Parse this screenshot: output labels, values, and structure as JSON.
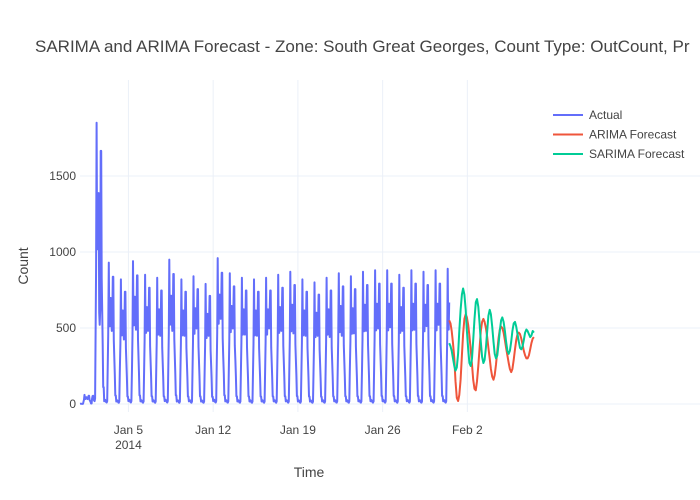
{
  "chart_data": {
    "type": "line",
    "title": "SARIMA and ARIMA Forecast - Zone: South Great Georges, Count Type: OutCount, Pr",
    "xlabel": "Time",
    "ylabel": "Count",
    "xlim": [
      "2014-01-01",
      "2014-02-08"
    ],
    "ylim": [
      0,
      2000
    ],
    "x_ticks": [
      {
        "date": "2014-01-05",
        "label": "Jan 5",
        "sublabel": "2014"
      },
      {
        "date": "2014-01-12",
        "label": "Jan 12",
        "sublabel": ""
      },
      {
        "date": "2014-01-19",
        "label": "Jan 19",
        "sublabel": ""
      },
      {
        "date": "2014-01-26",
        "label": "Jan 26",
        "sublabel": ""
      },
      {
        "date": "2014-02-02",
        "label": "Feb 2",
        "sublabel": ""
      }
    ],
    "y_ticks": [
      0,
      500,
      1000,
      1500
    ],
    "grid": true,
    "legend_position": "top-right",
    "series": [
      {
        "name": "Actual",
        "color": "#636efa",
        "start": "2014-01-01",
        "end": "2014-01-31T12:00",
        "daily_peaks": [
          60,
          1850,
          930,
          820,
          940,
          850,
          830,
          950,
          820,
          840,
          790,
          960,
          860,
          830,
          820,
          830,
          850,
          870,
          820,
          800,
          830,
          860,
          840,
          870,
          880,
          880,
          850,
          880,
          870,
          880,
          890
        ],
        "daily_secondary": [
          40,
          650,
          600,
          530,
          610,
          600,
          560,
          600,
          560,
          620,
          560,
          700,
          620,
          570,
          560,
          620,
          600,
          580,
          560,
          560,
          550,
          560,
          580,
          600,
          620,
          630,
          600,
          610,
          640,
          650,
          650
        ]
      },
      {
        "name": "ARIMA Forecast",
        "color": "#ef553b",
        "start": "2014-01-31T12:00",
        "end": "2014-02-07T12:00",
        "values": [
          550,
          530,
          480,
          400,
          300,
          150,
          40,
          20,
          60,
          160,
          320,
          460,
          560,
          590,
          570,
          520,
          450,
          360,
          260,
          160,
          100,
          90,
          150,
          250,
          370,
          480,
          540,
          560,
          540,
          500,
          440,
          370,
          300,
          230,
          180,
          160,
          190,
          260,
          350,
          430,
          490,
          510,
          500,
          470,
          420,
          370,
          320,
          270,
          230,
          210,
          230,
          290,
          360,
          420,
          460,
          470,
          460,
          430,
          390,
          350,
          320,
          300,
          300,
          320,
          360,
          400,
          430,
          440
        ]
      },
      {
        "name": "SARIMA Forecast",
        "color": "#00cc96",
        "start": "2014-01-31T12:00",
        "end": "2014-02-07T12:00",
        "values": [
          400,
          380,
          350,
          300,
          250,
          220,
          240,
          330,
          480,
          620,
          720,
          760,
          720,
          620,
          480,
          360,
          270,
          250,
          300,
          420,
          560,
          670,
          690,
          640,
          530,
          410,
          310,
          270,
          290,
          370,
          480,
          580,
          620,
          590,
          510,
          410,
          330,
          300,
          320,
          390,
          480,
          550,
          570,
          540,
          480,
          410,
          350,
          330,
          350,
          410,
          480,
          530,
          540,
          510,
          460,
          410,
          370,
          360,
          380,
          420,
          470,
          490,
          480,
          460,
          440,
          450,
          480,
          470
        ]
      }
    ]
  }
}
